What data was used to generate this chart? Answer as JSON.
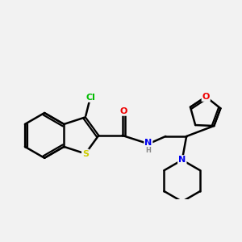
{
  "background_color": "#f2f2f2",
  "bond_color": "#000000",
  "atom_colors": {
    "S": "#cccc00",
    "N": "#0000ee",
    "O": "#ee0000",
    "Cl": "#00bb00",
    "H": "#888888",
    "C": "#000000"
  },
  "lw": 1.8,
  "dlw": 1.6,
  "doff": 0.07
}
